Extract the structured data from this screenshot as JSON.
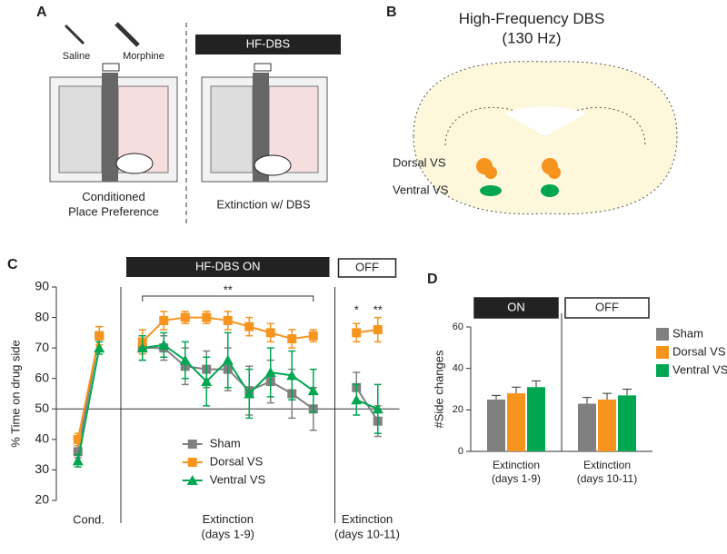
{
  "panel_a": {
    "label": "A",
    "syringes": [
      "Saline",
      "Morphine"
    ],
    "banner": "HF-DBS",
    "captions": [
      "Conditioned\nPlace Preference",
      "Extinction w/ DBS"
    ]
  },
  "panel_b": {
    "label": "B",
    "title": "High-Frequency DBS\n(130 Hz)",
    "regions": [
      "Dorsal VS",
      "Ventral VS"
    ]
  },
  "chart_data": [
    {
      "type": "line",
      "panel_label": "C",
      "ylabel": "% Time on drug side",
      "categories": [
        null,
        null,
        null,
        null,
        null,
        null,
        null,
        null,
        null,
        null,
        null,
        null,
        null
      ],
      "groups": [
        {
          "label": "Cond.",
          "count": 2
        },
        {
          "label": "Extinction\n(days 1-9)",
          "count": 9
        },
        {
          "label": "Extinction\n(days 10-11)",
          "count": 2
        }
      ],
      "series": [
        {
          "name": "Sham",
          "color": "#808080",
          "marker": "square",
          "values": [
            36,
            74,
            70,
            70,
            64,
            63,
            63,
            56,
            59,
            55,
            50,
            57,
            46
          ],
          "errors": [
            2,
            3,
            4,
            4,
            6,
            6,
            7,
            8,
            7,
            8,
            7,
            5,
            5
          ]
        },
        {
          "name": "Dorsal VS",
          "color": "#f7941d",
          "marker": "square",
          "values": [
            40,
            74,
            72,
            79,
            80,
            80,
            79,
            77,
            75,
            73,
            74,
            75,
            76
          ],
          "errors": [
            2,
            3,
            4,
            3,
            2,
            2,
            3,
            3,
            3,
            3,
            2,
            3,
            4
          ]
        },
        {
          "name": "Ventral VS",
          "color": "#00a651",
          "marker": "triangle",
          "values": [
            33,
            70,
            70,
            71,
            66,
            59,
            66,
            55,
            62,
            61,
            56,
            53,
            50
          ],
          "errors": [
            2,
            2,
            4,
            4,
            6,
            8,
            9,
            8,
            8,
            8,
            7,
            5,
            8
          ]
        }
      ],
      "ylim": [
        20,
        90
      ],
      "yticks": [
        20,
        30,
        40,
        50,
        60,
        70,
        80,
        90
      ],
      "hline": 50,
      "legend": "lower center",
      "banner_on": "HF-DBS ON",
      "banner_off": "OFF",
      "bracket_label": "**",
      "marks": [
        "*",
        "**"
      ]
    },
    {
      "type": "bar",
      "panel_label": "D",
      "ylabel": "#Side changes",
      "categories": [
        "Extinction\n(days 1-9)",
        "Extinction\n(days 10-11)"
      ],
      "series": [
        {
          "name": "Sham",
          "color": "#808080",
          "values": [
            25,
            23
          ],
          "errors": [
            2,
            3
          ]
        },
        {
          "name": "Dorsal VS",
          "color": "#f7941d",
          "values": [
            28,
            25
          ],
          "errors": [
            3,
            3
          ]
        },
        {
          "name": "Ventral VS",
          "color": "#00a651",
          "values": [
            31,
            27
          ],
          "errors": [
            3,
            3
          ]
        }
      ],
      "ylim": [
        0,
        60
      ],
      "yticks": [
        0,
        20,
        40,
        60
      ],
      "legend": "upper right",
      "banners": [
        "ON",
        "OFF"
      ]
    }
  ]
}
